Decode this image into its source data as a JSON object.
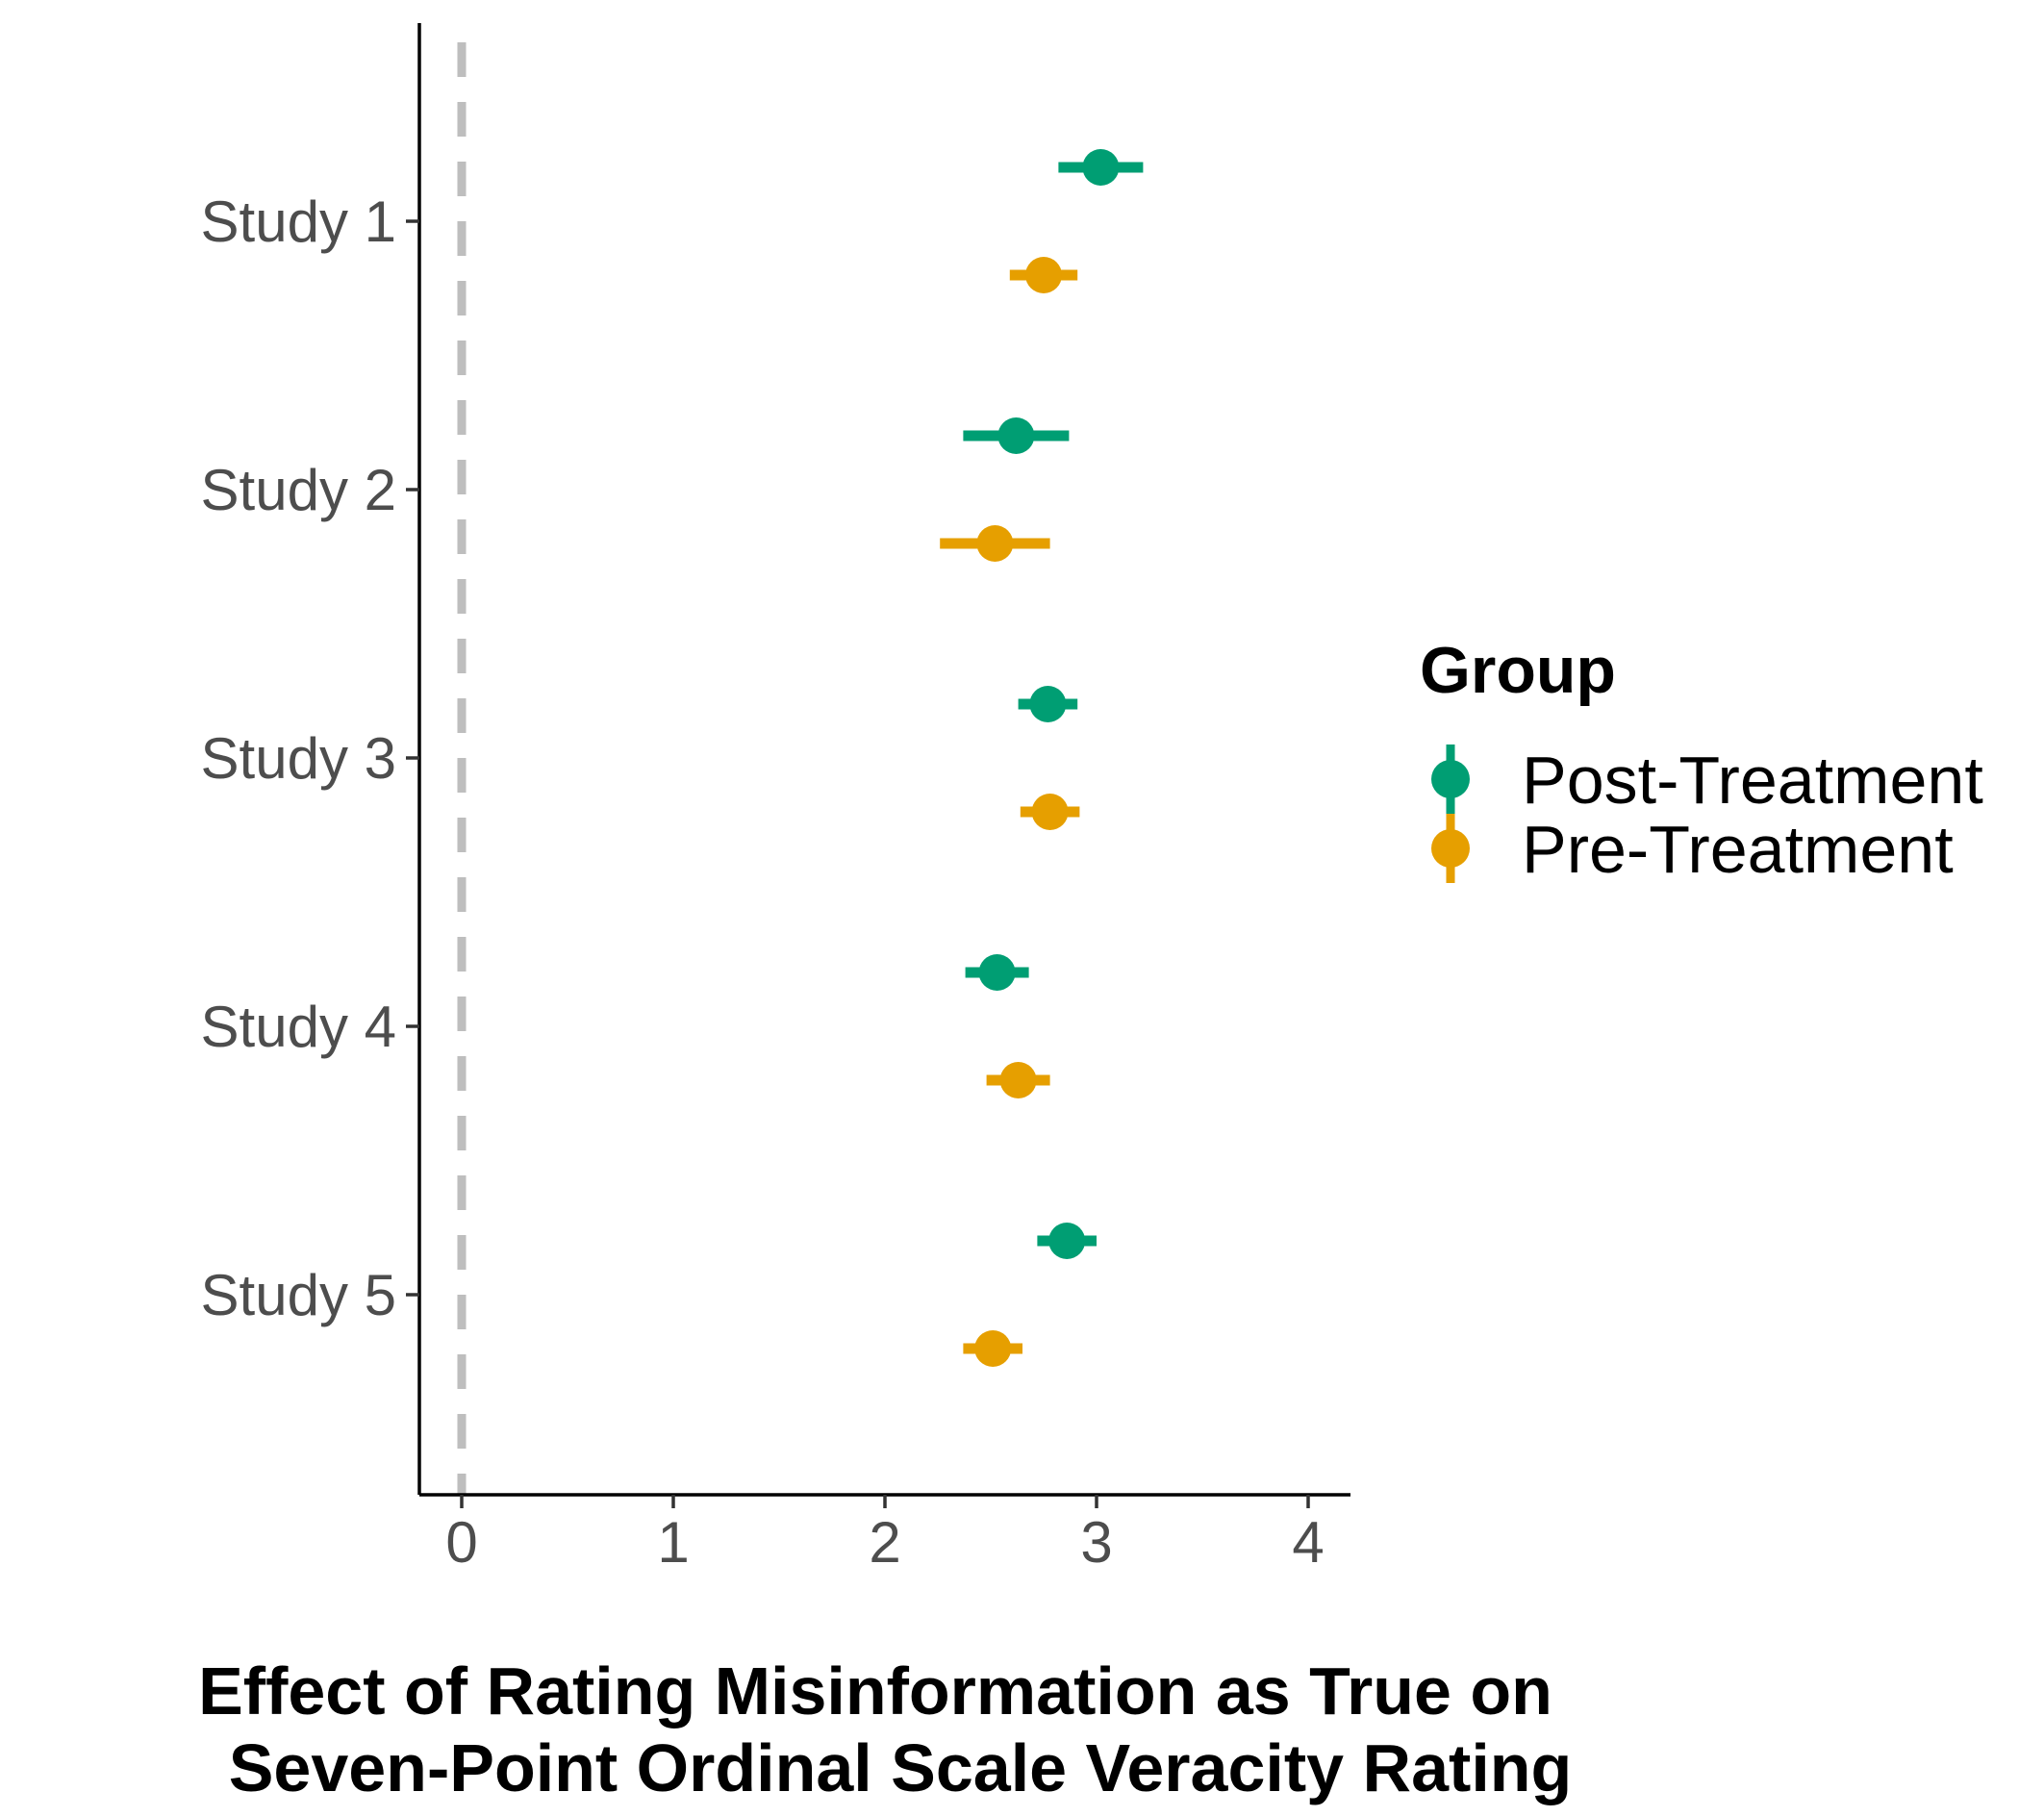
{
  "chart_data": {
    "type": "scatter",
    "subtype": "point-range forest plot",
    "categories": [
      "Study 1",
      "Study 2",
      "Study 3",
      "Study 4",
      "Study 5"
    ],
    "xlabel": "Effect of Rating Misinformation as True on\nSeven-Point Ordinal Scale Veracity Rating",
    "ylabel": "",
    "xlim": [
      -0.2,
      4.2
    ],
    "xticks": [
      "0",
      "1",
      "2",
      "3",
      "4"
    ],
    "reference_line": {
      "x": 0,
      "style": "dashed",
      "color": "#bebebe"
    },
    "grid": false,
    "legend": {
      "title": "Group",
      "position": "right"
    },
    "series": [
      {
        "name": "Post-Treatment",
        "color": "#009E73",
        "estimates": [
          3.02,
          2.62,
          2.77,
          2.53,
          2.86
        ],
        "ci_low": [
          2.82,
          2.37,
          2.63,
          2.38,
          2.72
        ],
        "ci_high": [
          3.22,
          2.87,
          2.91,
          2.68,
          3.0
        ]
      },
      {
        "name": "Pre-Treatment",
        "color": "#E69F00",
        "estimates": [
          2.75,
          2.52,
          2.78,
          2.63,
          2.51
        ],
        "ci_low": [
          2.59,
          2.26,
          2.64,
          2.48,
          2.37
        ],
        "ci_high": [
          2.91,
          2.78,
          2.92,
          2.78,
          2.65
        ]
      }
    ]
  }
}
